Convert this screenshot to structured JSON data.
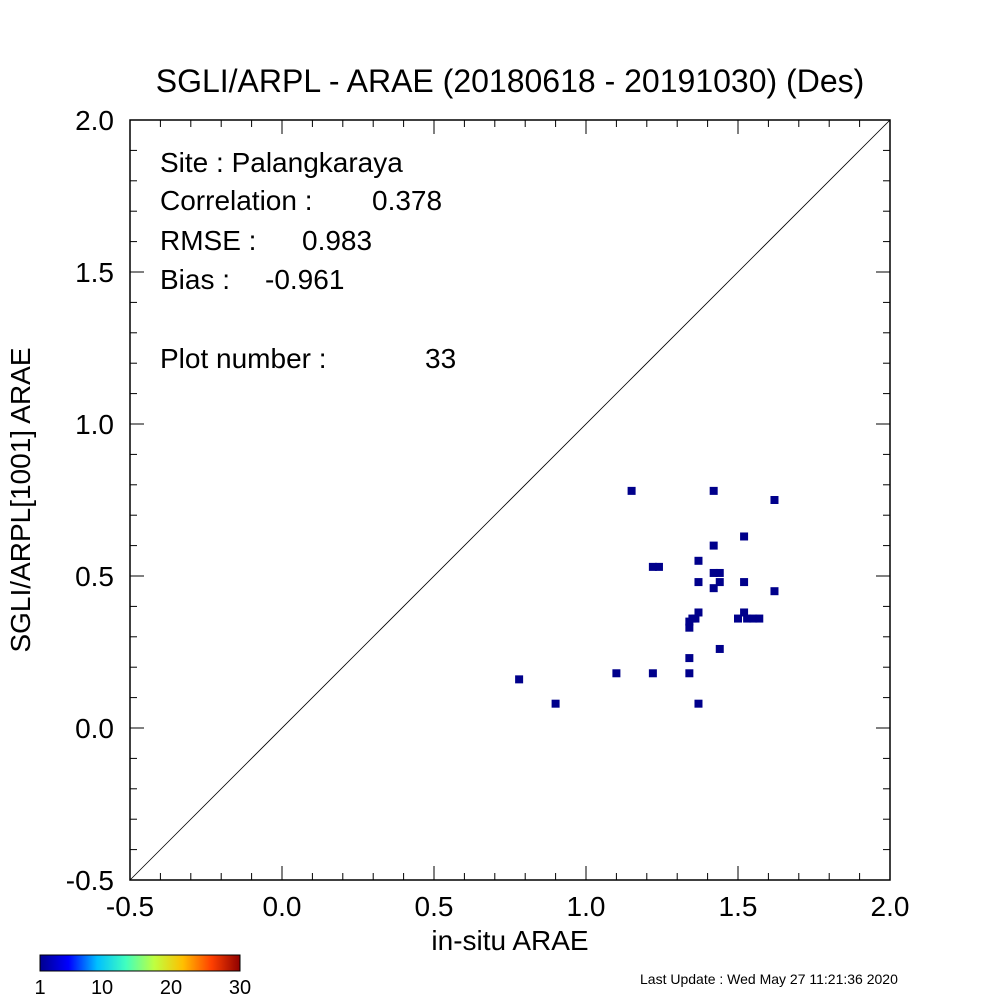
{
  "chart_data": {
    "type": "scatter",
    "title": "SGLI/ARPL - ARAE (20180618 - 20191030) (Des)",
    "xlabel": "in-situ ARAE",
    "ylabel": "SGLI/ARPL[1001]    ARAE",
    "xlim": [
      -0.5,
      2.0
    ],
    "ylim": [
      -0.5,
      2.0
    ],
    "xticks": [
      "-0.5",
      "0.0",
      "0.5",
      "1.0",
      "1.5",
      "2.0"
    ],
    "yticks": [
      "-0.5",
      "0.0",
      "0.5",
      "1.0",
      "1.5",
      "2.0"
    ],
    "identity_line": true,
    "grid": false,
    "point_color": "#00008b",
    "stats": {
      "site": "Site : Palangkaraya",
      "correlation_label": "Correlation :",
      "correlation": "0.378",
      "rmse_label": "RMSE :",
      "rmse": "0.983",
      "bias_label": "Bias :",
      "bias": "-0.961",
      "plot_number_label": "Plot number :",
      "plot_number": "33"
    },
    "points": [
      {
        "x": 0.78,
        "y": 0.16
      },
      {
        "x": 0.9,
        "y": 0.08
      },
      {
        "x": 1.1,
        "y": 0.18
      },
      {
        "x": 1.15,
        "y": 0.78
      },
      {
        "x": 1.22,
        "y": 0.53
      },
      {
        "x": 1.24,
        "y": 0.53
      },
      {
        "x": 1.22,
        "y": 0.18
      },
      {
        "x": 1.34,
        "y": 0.23
      },
      {
        "x": 1.34,
        "y": 0.18
      },
      {
        "x": 1.34,
        "y": 0.33
      },
      {
        "x": 1.34,
        "y": 0.35
      },
      {
        "x": 1.36,
        "y": 0.36
      },
      {
        "x": 1.37,
        "y": 0.38
      },
      {
        "x": 1.37,
        "y": 0.55
      },
      {
        "x": 1.37,
        "y": 0.48
      },
      {
        "x": 1.37,
        "y": 0.08
      },
      {
        "x": 1.42,
        "y": 0.78
      },
      {
        "x": 1.42,
        "y": 0.6
      },
      {
        "x": 1.42,
        "y": 0.51
      },
      {
        "x": 1.42,
        "y": 0.46
      },
      {
        "x": 1.44,
        "y": 0.51
      },
      {
        "x": 1.44,
        "y": 0.48
      },
      {
        "x": 1.44,
        "y": 0.26
      },
      {
        "x": 1.5,
        "y": 0.36
      },
      {
        "x": 1.52,
        "y": 0.63
      },
      {
        "x": 1.52,
        "y": 0.48
      },
      {
        "x": 1.52,
        "y": 0.38
      },
      {
        "x": 1.53,
        "y": 0.36
      },
      {
        "x": 1.55,
        "y": 0.36
      },
      {
        "x": 1.57,
        "y": 0.36
      },
      {
        "x": 1.62,
        "y": 0.75
      },
      {
        "x": 1.62,
        "y": 0.45
      },
      {
        "x": 1.35,
        "y": 0.36
      }
    ]
  },
  "colorbar": {
    "ticks": [
      "1",
      "10",
      "20",
      "30"
    ],
    "colors": [
      "#00008f",
      "#0000ff",
      "#00bfff",
      "#40ffbf",
      "#bfff40",
      "#ffbf00",
      "#ff4000",
      "#8f0000"
    ]
  },
  "footer": {
    "last_update": "Last Update : Wed May 27 11:21:36 2020"
  }
}
